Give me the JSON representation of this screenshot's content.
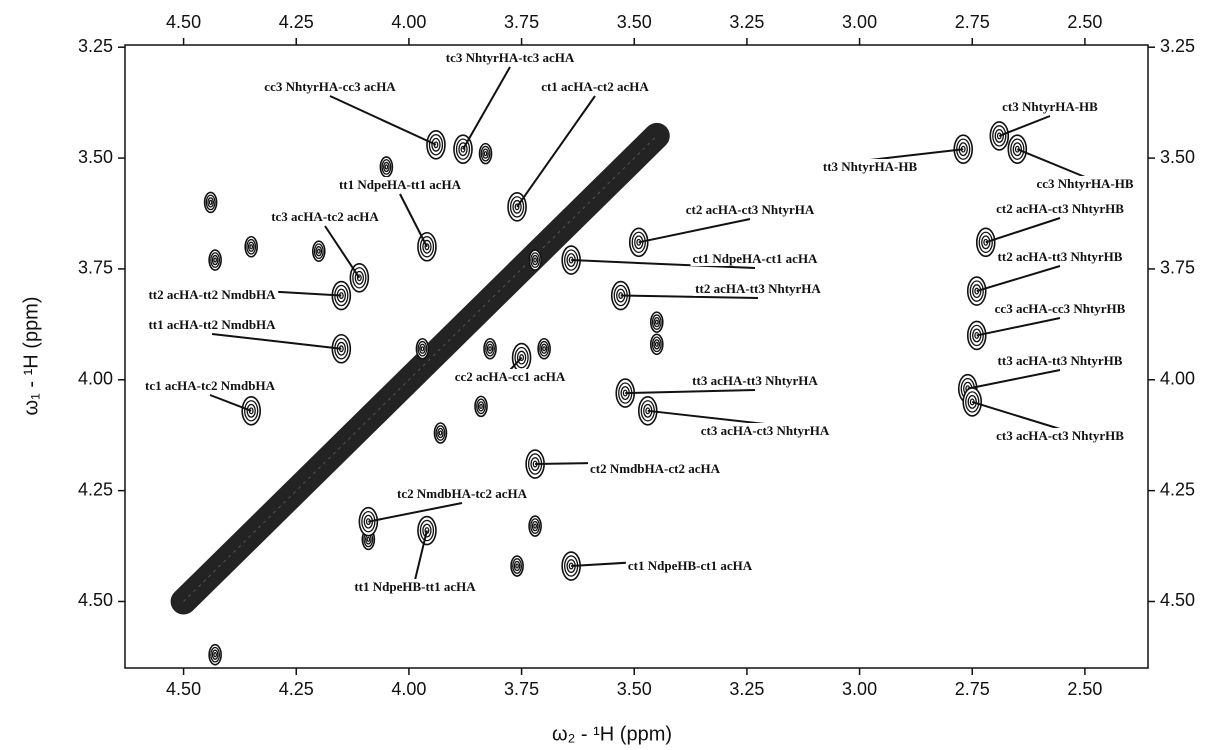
{
  "chart_data": {
    "type": "contour",
    "x_label": "ω₂ - ¹H (ppm)",
    "y_label": "ω₁ - ¹H (ppm)",
    "xlim": [
      4.63,
      2.36
    ],
    "ylim": [
      3.245,
      4.65
    ],
    "xticks": [
      {
        "value": 4.5,
        "label": "4.50"
      },
      {
        "value": 4.25,
        "label": "4.25"
      },
      {
        "value": 4.0,
        "label": "4.00"
      },
      {
        "value": 3.75,
        "label": "3.75"
      },
      {
        "value": 3.5,
        "label": "3.50"
      },
      {
        "value": 3.25,
        "label": "3.25"
      },
      {
        "value": 3.0,
        "label": "3.00"
      },
      {
        "value": 2.75,
        "label": "2.75"
      },
      {
        "value": 2.5,
        "label": "2.50"
      }
    ],
    "yticks": [
      {
        "value": 3.25,
        "label": "3.25"
      },
      {
        "value": 3.5,
        "label": "3.50"
      },
      {
        "value": 3.75,
        "label": "3.75"
      },
      {
        "value": 4.0,
        "label": "4.00"
      },
      {
        "value": 4.25,
        "label": "4.25"
      },
      {
        "value": 4.5,
        "label": "4.50"
      }
    ],
    "diagonal": [
      4.5,
      3.45
    ],
    "color": "#111111",
    "annotations": [
      {
        "text": "tc3 NhtyrHA-tc3 acHA",
        "x": 3.88,
        "y": 3.48
      },
      {
        "text": "cc3 NhtyrHA-cc3 acHA",
        "x": 3.94,
        "y": 3.47
      },
      {
        "text": "ct1 acHA-ct2 acHA",
        "x": 3.76,
        "y": 3.61
      },
      {
        "text": "tt1 NdpeHA-tt1 acHA",
        "x": 3.96,
        "y": 3.7
      },
      {
        "text": "tc3 acHA-tc2 acHA",
        "x": 4.11,
        "y": 3.77
      },
      {
        "text": "ct2 acHA-ct3 NhtyrHA",
        "x": 3.49,
        "y": 3.69
      },
      {
        "text": "ct1 NdpeHA-ct1 acHA",
        "x": 3.64,
        "y": 3.73
      },
      {
        "text": "tt2 acHA-tt2 NmdbHA",
        "x": 4.15,
        "y": 3.81
      },
      {
        "text": "tt2 acHA-tt3 NhtyrHA",
        "x": 3.53,
        "y": 3.81
      },
      {
        "text": "tt1 acHA-tt2 NmdbHA",
        "x": 4.15,
        "y": 3.93
      },
      {
        "text": "tc1 acHA-tc2 NmdbHA",
        "x": 4.35,
        "y": 4.07
      },
      {
        "text": "cc2 acHA-cc1 acHA",
        "x": 3.75,
        "y": 3.95
      },
      {
        "text": "tt3 acHA-tt3 NhtyrHA",
        "x": 3.52,
        "y": 4.03
      },
      {
        "text": "ct3 acHA-ct3 NhtyrHA",
        "x": 3.47,
        "y": 4.07
      },
      {
        "text": "ct2 NmdbHA-ct2 acHA",
        "x": 3.72,
        "y": 4.19
      },
      {
        "text": "tc2 NmdbHA-tc2 acHA",
        "x": 4.09,
        "y": 4.32
      },
      {
        "text": "tt1 NdpeHB-tt1 acHA",
        "x": 3.96,
        "y": 4.34
      },
      {
        "text": "ct1 NdpeHB-ct1 acHA",
        "x": 3.64,
        "y": 4.42
      },
      {
        "text": "ct3 NhtyrHA-HB",
        "x": 2.69,
        "y": 3.45
      },
      {
        "text": "tt3 NhtyrHA-HB",
        "x": 2.77,
        "y": 3.48
      },
      {
        "text": "cc3 NhtyrHA-HB",
        "x": 2.65,
        "y": 3.48
      },
      {
        "text": "ct2 acHA-ct3 NhtyrHB",
        "x": 2.72,
        "y": 3.69
      },
      {
        "text": "tt2 acHA-tt3 NhtyrHB",
        "x": 2.74,
        "y": 3.8
      },
      {
        "text": "cc3 acHA-cc3 NhtyrHB",
        "x": 2.74,
        "y": 3.9
      },
      {
        "text": "tt3 acHA-tt3 NhtyrHB",
        "x": 2.76,
        "y": 4.02
      },
      {
        "text": "ct3 acHA-ct3 NhtyrHB",
        "x": 2.75,
        "y": 4.05
      }
    ],
    "peaks": {
      "x": [
        4.44,
        4.43,
        4.35,
        4.2,
        3.97,
        3.82,
        3.7,
        3.84,
        3.93,
        3.72,
        3.76,
        4.43,
        3.72,
        3.45,
        3.45,
        4.09,
        4.05,
        3.83
      ],
      "y": [
        3.6,
        3.73,
        3.7,
        3.71,
        3.93,
        3.93,
        3.93,
        4.06,
        4.12,
        4.33,
        4.42,
        4.62,
        3.73,
        3.92,
        3.87,
        4.36,
        3.52,
        3.49
      ]
    }
  }
}
